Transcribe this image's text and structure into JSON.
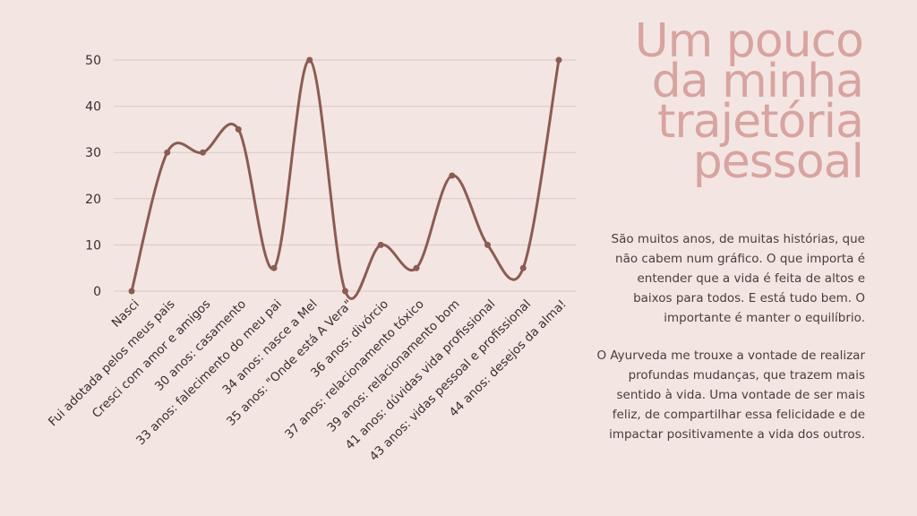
{
  "page": {
    "title_lines": [
      "Um pouco",
      "da minha",
      "trajetória",
      "pessoal"
    ],
    "paragraphs": [
      "São muitos anos, de muitas histórias, que não cabem num gráfico. O que importa é entender que a vida é feita de altos e baixos para todos. E está tudo bem. O importante é manter o equilíbrio.",
      "O Ayurveda me trouxe a vontade de realizar profundas mudanças, que trazem mais sentido à vida. Uma vontade de ser mais feliz, de compartilhar essa felicidade e de impactar positivamente a vida dos outros."
    ]
  },
  "chart_data": {
    "type": "line",
    "categories": [
      "Nasci",
      "Fui adotada pelos meus pais",
      "Cresci com amor e amigos",
      "30 anos: casamento",
      "33 anos: falecimento do meu pai",
      "34 anos: nasce a Mel",
      "35 anos: \"Onde está A Vera\"",
      "36 anos: divórcio",
      "37 anos: relacionamento tóxico",
      "39 anos: relacionamento bom",
      "41 anos: dúvidas vida profissional",
      "43 anos: vidas pessoal e profissional",
      "44 anos: desejos da alma!"
    ],
    "values": [
      0,
      30,
      30,
      35,
      5,
      50,
      0,
      10,
      5,
      25,
      10,
      5,
      50
    ],
    "title": "",
    "xlabel": "",
    "ylabel": "",
    "ylim": [
      0,
      50
    ],
    "yticks": [
      0,
      10,
      20,
      30,
      40,
      50
    ],
    "grid": true,
    "smooth": true,
    "line_color": "#8c5b52",
    "grid_color": "#d8c8c4"
  }
}
